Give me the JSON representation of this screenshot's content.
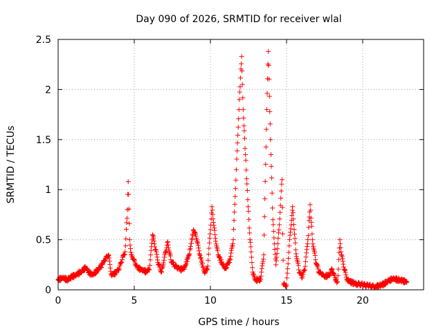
{
  "chart_data": {
    "type": "scatter",
    "title": "Day 090 of 2026, SRMTID for receiver wlal",
    "xlabel": "GPS time / hours",
    "ylabel": "SRMTID / TECUs",
    "xlim": [
      0,
      24
    ],
    "ylim": [
      0,
      2.5
    ],
    "xticks": [
      0,
      5,
      10,
      15,
      20
    ],
    "xtick_labels": [
      "0",
      "5",
      "10",
      "15",
      "20"
    ],
    "yticks": [
      0,
      0.5,
      1,
      1.5,
      2,
      2.5
    ],
    "ytick_labels": [
      "0",
      "0.5",
      "1",
      "1.5",
      "2",
      "2.5"
    ],
    "grid": true,
    "marker": "+",
    "color": "#ff0000",
    "series": [
      {
        "name": "SRMTID",
        "points": [
          [
            0.0,
            0.1
          ],
          [
            0.3,
            0.12
          ],
          [
            0.6,
            0.1
          ],
          [
            0.9,
            0.13
          ],
          [
            1.2,
            0.15
          ],
          [
            1.5,
            0.18
          ],
          [
            1.8,
            0.22
          ],
          [
            2.0,
            0.17
          ],
          [
            2.3,
            0.15
          ],
          [
            2.6,
            0.2
          ],
          [
            2.9,
            0.25
          ],
          [
            3.1,
            0.3
          ],
          [
            3.3,
            0.35
          ],
          [
            3.5,
            0.15
          ],
          [
            3.8,
            0.17
          ],
          [
            4.0,
            0.2
          ],
          [
            4.2,
            0.3
          ],
          [
            4.4,
            0.38
          ],
          [
            4.55,
            0.8
          ],
          [
            4.6,
            1.08
          ],
          [
            4.7,
            0.5
          ],
          [
            4.8,
            0.35
          ],
          [
            5.0,
            0.3
          ],
          [
            5.2,
            0.22
          ],
          [
            5.5,
            0.2
          ],
          [
            5.8,
            0.18
          ],
          [
            6.0,
            0.2
          ],
          [
            6.2,
            0.55
          ],
          [
            6.4,
            0.4
          ],
          [
            6.6,
            0.25
          ],
          [
            6.8,
            0.18
          ],
          [
            7.0,
            0.35
          ],
          [
            7.2,
            0.48
          ],
          [
            7.4,
            0.3
          ],
          [
            7.6,
            0.25
          ],
          [
            7.8,
            0.22
          ],
          [
            8.0,
            0.2
          ],
          [
            8.3,
            0.22
          ],
          [
            8.6,
            0.35
          ],
          [
            8.9,
            0.6
          ],
          [
            9.1,
            0.5
          ],
          [
            9.3,
            0.35
          ],
          [
            9.6,
            0.18
          ],
          [
            9.8,
            0.2
          ],
          [
            10.0,
            0.6
          ],
          [
            10.1,
            0.83
          ],
          [
            10.3,
            0.55
          ],
          [
            10.5,
            0.35
          ],
          [
            10.8,
            0.25
          ],
          [
            11.0,
            0.22
          ],
          [
            11.3,
            0.3
          ],
          [
            11.5,
            0.5
          ],
          [
            11.7,
            1.2
          ],
          [
            11.9,
            1.9
          ],
          [
            12.05,
            2.33
          ],
          [
            12.15,
            1.8
          ],
          [
            12.3,
            1.35
          ],
          [
            12.45,
            0.9
          ],
          [
            12.6,
            0.5
          ],
          [
            12.8,
            0.15
          ],
          [
            13.0,
            0.1
          ],
          [
            13.3,
            0.1
          ],
          [
            13.5,
            0.35
          ],
          [
            13.7,
            1.8
          ],
          [
            13.8,
            2.38
          ],
          [
            13.95,
            1.5
          ],
          [
            14.1,
            0.7
          ],
          [
            14.3,
            0.25
          ],
          [
            14.5,
            0.6
          ],
          [
            14.7,
            1.1
          ],
          [
            14.8,
            0.05
          ],
          [
            15.0,
            0.05
          ],
          [
            15.2,
            0.5
          ],
          [
            15.4,
            0.83
          ],
          [
            15.6,
            0.4
          ],
          [
            15.8,
            0.2
          ],
          [
            16.0,
            0.12
          ],
          [
            16.2,
            0.2
          ],
          [
            16.4,
            0.5
          ],
          [
            16.55,
            0.85
          ],
          [
            16.7,
            0.5
          ],
          [
            16.9,
            0.3
          ],
          [
            17.1,
            0.18
          ],
          [
            17.3,
            0.15
          ],
          [
            17.5,
            0.13
          ],
          [
            17.8,
            0.15
          ],
          [
            18.0,
            0.2
          ],
          [
            18.2,
            0.1
          ],
          [
            18.35,
            0.08
          ],
          [
            18.5,
            0.5
          ],
          [
            18.6,
            0.35
          ],
          [
            18.8,
            0.2
          ],
          [
            19.0,
            0.1
          ],
          [
            19.3,
            0.07
          ],
          [
            19.6,
            0.06
          ],
          [
            20.0,
            0.05
          ],
          [
            20.4,
            0.04
          ],
          [
            20.8,
            0.03
          ],
          [
            21.1,
            0.04
          ],
          [
            21.4,
            0.06
          ],
          [
            21.7,
            0.09
          ],
          [
            22.0,
            0.11
          ],
          [
            22.3,
            0.1
          ],
          [
            22.6,
            0.09
          ],
          [
            22.9,
            0.08
          ]
        ]
      }
    ]
  }
}
